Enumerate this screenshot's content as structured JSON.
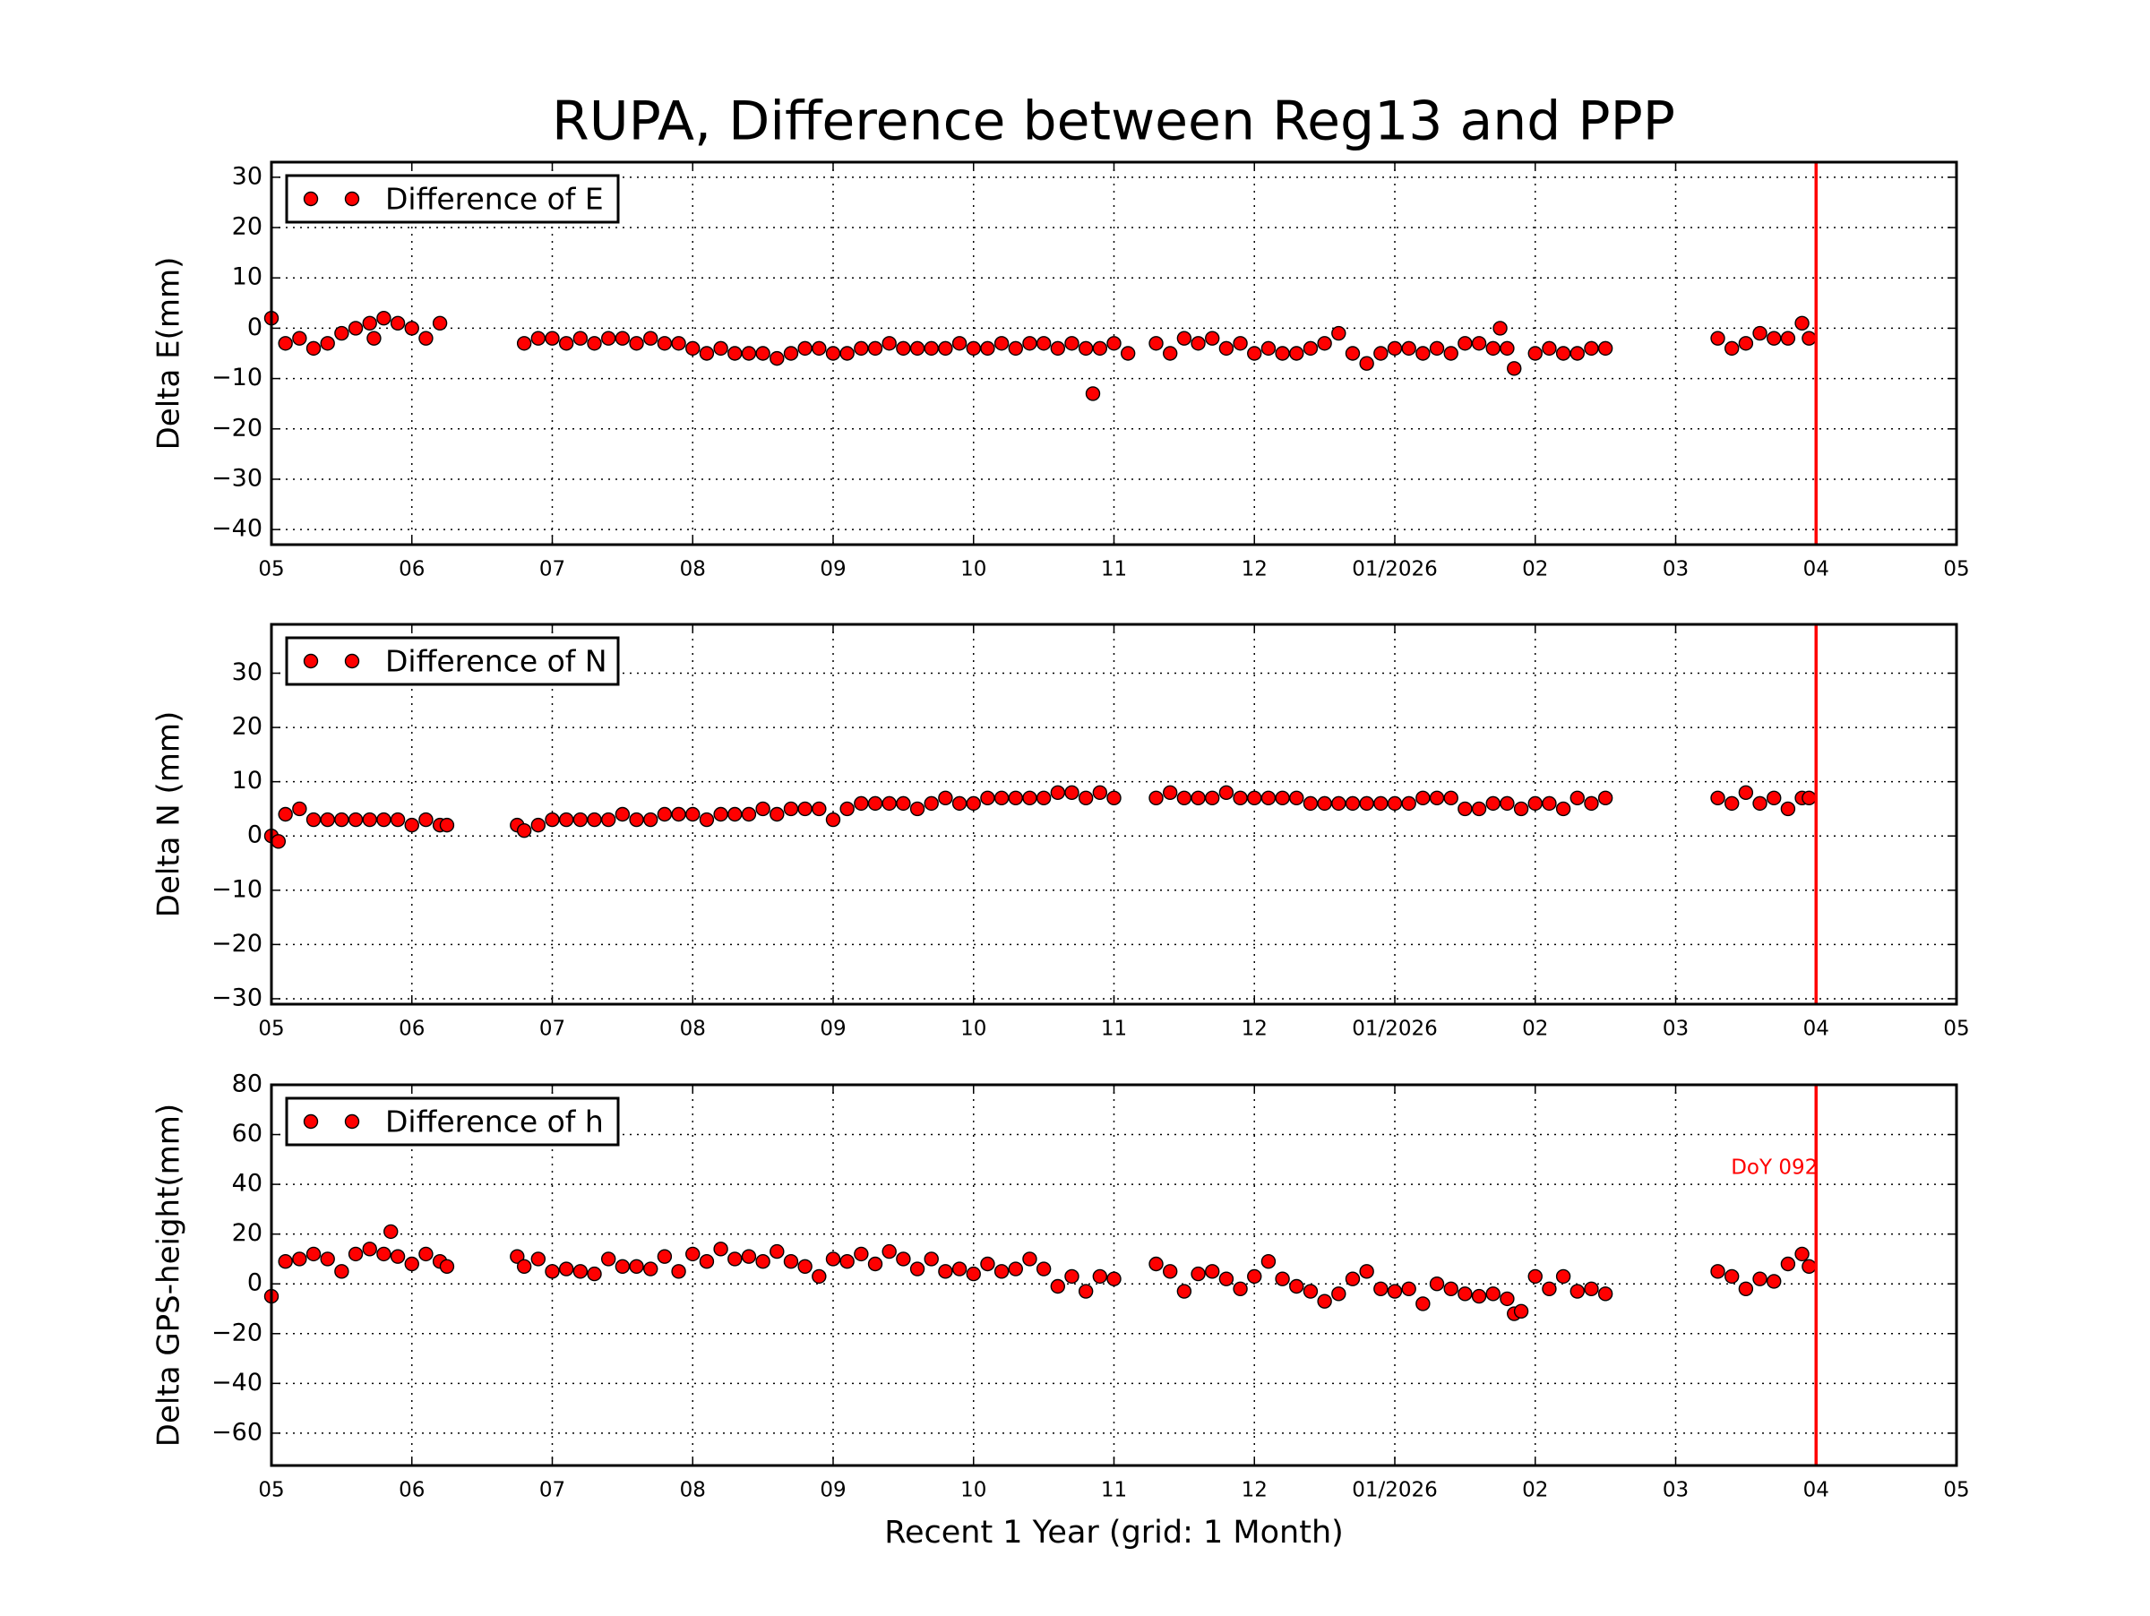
{
  "chart_data": [
    {
      "type": "scatter",
      "title": "RUPA, Difference between Reg13 and PPP",
      "ylabel": "Delta E(mm)",
      "xlim": [
        0,
        12
      ],
      "xticks": [
        {
          "value": 0,
          "label": "05"
        },
        {
          "value": 1,
          "label": "06"
        },
        {
          "value": 2,
          "label": "07"
        },
        {
          "value": 3,
          "label": "08"
        },
        {
          "value": 4,
          "label": "09"
        },
        {
          "value": 5,
          "label": "10"
        },
        {
          "value": 6,
          "label": "11"
        },
        {
          "value": 7,
          "label": "12"
        },
        {
          "value": 8,
          "label": "01/2026"
        },
        {
          "value": 9,
          "label": "02"
        },
        {
          "value": 10,
          "label": "03"
        },
        {
          "value": 11,
          "label": "04"
        },
        {
          "value": 12,
          "label": "05"
        }
      ],
      "ylim": [
        -43,
        33
      ],
      "yticks": [
        {
          "value": -40,
          "label": "−40"
        },
        {
          "value": -30,
          "label": "−30"
        },
        {
          "value": -20,
          "label": "−20"
        },
        {
          "value": -10,
          "label": "−10"
        },
        0,
        10,
        20,
        30
      ],
      "grid": true,
      "legend": "upper left",
      "vline": 11,
      "vline_color": "#ff0000",
      "x": [
        0,
        0.1,
        0.2,
        0.3,
        0.4,
        0.5,
        0.6,
        0.7,
        0.73,
        0.8,
        0.9,
        1.0,
        1.1,
        1.2,
        1.8,
        1.9,
        2.0,
        2.1,
        2.2,
        2.3,
        2.4,
        2.5,
        2.6,
        2.7,
        2.8,
        2.9,
        3.0,
        3.1,
        3.2,
        3.3,
        3.4,
        3.5,
        3.6,
        3.7,
        3.8,
        3.9,
        4.0,
        4.1,
        4.2,
        4.3,
        4.4,
        4.5,
        4.6,
        4.7,
        4.8,
        4.9,
        5.0,
        5.1,
        5.2,
        5.3,
        5.4,
        5.5,
        5.6,
        5.7,
        5.8,
        5.85,
        5.9,
        6.0,
        6.1,
        6.3,
        6.4,
        6.5,
        6.6,
        6.7,
        6.8,
        6.9,
        7.0,
        7.1,
        7.2,
        7.3,
        7.4,
        7.5,
        7.6,
        7.7,
        7.8,
        7.9,
        8.0,
        8.1,
        8.2,
        8.3,
        8.4,
        8.5,
        8.6,
        8.7,
        8.75,
        8.8,
        8.85,
        9.0,
        9.1,
        9.2,
        9.3,
        9.4,
        9.5,
        10.3,
        10.4,
        10.5,
        10.6,
        10.7,
        10.8,
        10.9,
        10.95
      ],
      "series": [
        {
          "name": "Difference of E",
          "color": "#ff0000",
          "values": [
            2,
            -3,
            -2,
            -4,
            -3,
            -1,
            0,
            1,
            -2,
            2,
            1,
            0,
            -2,
            1,
            -3,
            -2,
            -2,
            -3,
            -2,
            -3,
            -2,
            -2,
            -3,
            -2,
            -3,
            -3,
            -4,
            -5,
            -4,
            -5,
            -5,
            -5,
            -6,
            -5,
            -4,
            -4,
            -5,
            -5,
            -4,
            -4,
            -3,
            -4,
            -4,
            -4,
            -4,
            -3,
            -4,
            -4,
            -3,
            -4,
            -3,
            -3,
            -4,
            -3,
            -4,
            -13,
            -4,
            -3,
            -5,
            -3,
            -5,
            -2,
            -3,
            -2,
            -4,
            -3,
            -5,
            -4,
            -5,
            -5,
            -4,
            -3,
            -1,
            -5,
            -7,
            -5,
            -4,
            -4,
            -5,
            -4,
            -5,
            -3,
            -3,
            -4,
            0,
            -4,
            -8,
            -5,
            -4,
            -5,
            -5,
            -4,
            -4,
            -2,
            -4,
            -3,
            -1,
            -2,
            -2,
            1,
            -2
          ]
        }
      ]
    },
    {
      "type": "scatter",
      "ylabel": "Delta N (mm)",
      "xlim": [
        0,
        12
      ],
      "xticks": [
        {
          "value": 0,
          "label": "05"
        },
        {
          "value": 1,
          "label": "06"
        },
        {
          "value": 2,
          "label": "07"
        },
        {
          "value": 3,
          "label": "08"
        },
        {
          "value": 4,
          "label": "09"
        },
        {
          "value": 5,
          "label": "10"
        },
        {
          "value": 6,
          "label": "11"
        },
        {
          "value": 7,
          "label": "12"
        },
        {
          "value": 8,
          "label": "01/2026"
        },
        {
          "value": 9,
          "label": "02"
        },
        {
          "value": 10,
          "label": "03"
        },
        {
          "value": 11,
          "label": "04"
        },
        {
          "value": 12,
          "label": "05"
        }
      ],
      "ylim": [
        -31,
        39
      ],
      "yticks": [
        {
          "value": -30,
          "label": "−30"
        },
        {
          "value": -20,
          "label": "−20"
        },
        {
          "value": -10,
          "label": "−10"
        },
        0,
        10,
        20,
        30
      ],
      "grid": true,
      "legend": "upper left",
      "vline": 11,
      "vline_color": "#ff0000",
      "x": [
        0,
        0.05,
        0.1,
        0.2,
        0.3,
        0.4,
        0.5,
        0.6,
        0.7,
        0.8,
        0.9,
        1.0,
        1.1,
        1.2,
        1.25,
        1.75,
        1.8,
        1.9,
        2.0,
        2.1,
        2.2,
        2.3,
        2.4,
        2.5,
        2.6,
        2.7,
        2.8,
        2.9,
        3.0,
        3.1,
        3.2,
        3.3,
        3.4,
        3.5,
        3.6,
        3.7,
        3.8,
        3.9,
        4.0,
        4.1,
        4.2,
        4.3,
        4.4,
        4.5,
        4.6,
        4.7,
        4.8,
        4.9,
        5.0,
        5.1,
        5.2,
        5.3,
        5.4,
        5.5,
        5.6,
        5.7,
        5.8,
        5.9,
        6.0,
        6.3,
        6.4,
        6.5,
        6.6,
        6.7,
        6.8,
        6.9,
        7.0,
        7.1,
        7.2,
        7.3,
        7.4,
        7.5,
        7.6,
        7.7,
        7.8,
        7.9,
        8.0,
        8.1,
        8.2,
        8.3,
        8.4,
        8.5,
        8.6,
        8.7,
        8.8,
        8.9,
        9.0,
        9.1,
        9.2,
        9.3,
        9.4,
        9.5,
        10.3,
        10.4,
        10.5,
        10.6,
        10.7,
        10.8,
        10.9,
        10.95
      ],
      "series": [
        {
          "name": "Difference of N",
          "color": "#ff0000",
          "values": [
            0,
            -1,
            4,
            5,
            3,
            3,
            3,
            3,
            3,
            3,
            3,
            2,
            3,
            2,
            2,
            2,
            1,
            2,
            3,
            3,
            3,
            3,
            3,
            4,
            3,
            3,
            4,
            4,
            4,
            3,
            4,
            4,
            4,
            5,
            4,
            5,
            5,
            5,
            3,
            5,
            6,
            6,
            6,
            6,
            5,
            6,
            7,
            6,
            6,
            7,
            7,
            7,
            7,
            7,
            8,
            8,
            7,
            8,
            7,
            7,
            8,
            7,
            7,
            7,
            8,
            7,
            7,
            7,
            7,
            7,
            6,
            6,
            6,
            6,
            6,
            6,
            6,
            6,
            7,
            7,
            7,
            5,
            5,
            6,
            6,
            5,
            6,
            6,
            5,
            7,
            6,
            7,
            7,
            6,
            8,
            6,
            7,
            5,
            7,
            7
          ]
        }
      ]
    },
    {
      "type": "scatter",
      "ylabel": "Delta GPS-height(mm)",
      "xlabel": "Recent 1 Year (grid: 1 Month)",
      "annotation": "DoY 092",
      "xlim": [
        0,
        12
      ],
      "xticks": [
        {
          "value": 0,
          "label": "05"
        },
        {
          "value": 1,
          "label": "06"
        },
        {
          "value": 2,
          "label": "07"
        },
        {
          "value": 3,
          "label": "08"
        },
        {
          "value": 4,
          "label": "09"
        },
        {
          "value": 5,
          "label": "10"
        },
        {
          "value": 6,
          "label": "11"
        },
        {
          "value": 7,
          "label": "12"
        },
        {
          "value": 8,
          "label": "01/2026"
        },
        {
          "value": 9,
          "label": "02"
        },
        {
          "value": 10,
          "label": "03"
        },
        {
          "value": 11,
          "label": "04"
        },
        {
          "value": 12,
          "label": "05"
        }
      ],
      "ylim": [
        -73,
        80
      ],
      "yticks": [
        {
          "value": -60,
          "label": "−60"
        },
        {
          "value": -40,
          "label": "−40"
        },
        {
          "value": -20,
          "label": "−20"
        },
        0,
        20,
        40,
        60,
        80
      ],
      "grid": true,
      "legend": "upper left",
      "vline": 11,
      "vline_color": "#ff0000",
      "x": [
        0,
        0.1,
        0.2,
        0.3,
        0.4,
        0.5,
        0.6,
        0.7,
        0.8,
        0.85,
        0.9,
        1.0,
        1.1,
        1.2,
        1.25,
        1.75,
        1.8,
        1.9,
        2.0,
        2.1,
        2.2,
        2.3,
        2.4,
        2.5,
        2.6,
        2.7,
        2.8,
        2.9,
        3.0,
        3.1,
        3.2,
        3.3,
        3.4,
        3.5,
        3.6,
        3.7,
        3.8,
        3.9,
        4.0,
        4.1,
        4.2,
        4.3,
        4.4,
        4.5,
        4.6,
        4.7,
        4.8,
        4.9,
        5.0,
        5.1,
        5.2,
        5.3,
        5.4,
        5.5,
        5.6,
        5.7,
        5.8,
        5.9,
        6.0,
        6.3,
        6.4,
        6.5,
        6.6,
        6.7,
        6.8,
        6.9,
        7.0,
        7.1,
        7.2,
        7.3,
        7.4,
        7.5,
        7.6,
        7.7,
        7.8,
        7.9,
        8.0,
        8.1,
        8.2,
        8.3,
        8.4,
        8.5,
        8.6,
        8.7,
        8.8,
        8.85,
        8.9,
        9.0,
        9.1,
        9.2,
        9.3,
        9.4,
        9.5,
        10.3,
        10.4,
        10.5,
        10.6,
        10.7,
        10.8,
        10.9,
        10.95
      ],
      "series": [
        {
          "name": "Difference of h",
          "color": "#ff0000",
          "values": [
            -5,
            9,
            10,
            12,
            10,
            5,
            12,
            14,
            12,
            21,
            11,
            8,
            12,
            9,
            7,
            11,
            7,
            10,
            5,
            6,
            5,
            4,
            10,
            7,
            7,
            6,
            11,
            5,
            12,
            9,
            14,
            10,
            11,
            9,
            13,
            9,
            7,
            3,
            10,
            9,
            12,
            8,
            13,
            10,
            6,
            10,
            5,
            6,
            4,
            8,
            5,
            6,
            10,
            6,
            -1,
            3,
            -3,
            3,
            2,
            8,
            5,
            -3,
            4,
            5,
            2,
            -2,
            3,
            9,
            2,
            -1,
            -3,
            -7,
            -4,
            2,
            5,
            -2,
            -3,
            -2,
            -8,
            0,
            -2,
            -4,
            -5,
            -4,
            -6,
            -12,
            -11,
            3,
            -2,
            3,
            -3,
            -2,
            -4,
            5,
            3,
            -2,
            2,
            1,
            8,
            12,
            7
          ]
        }
      ]
    }
  ]
}
